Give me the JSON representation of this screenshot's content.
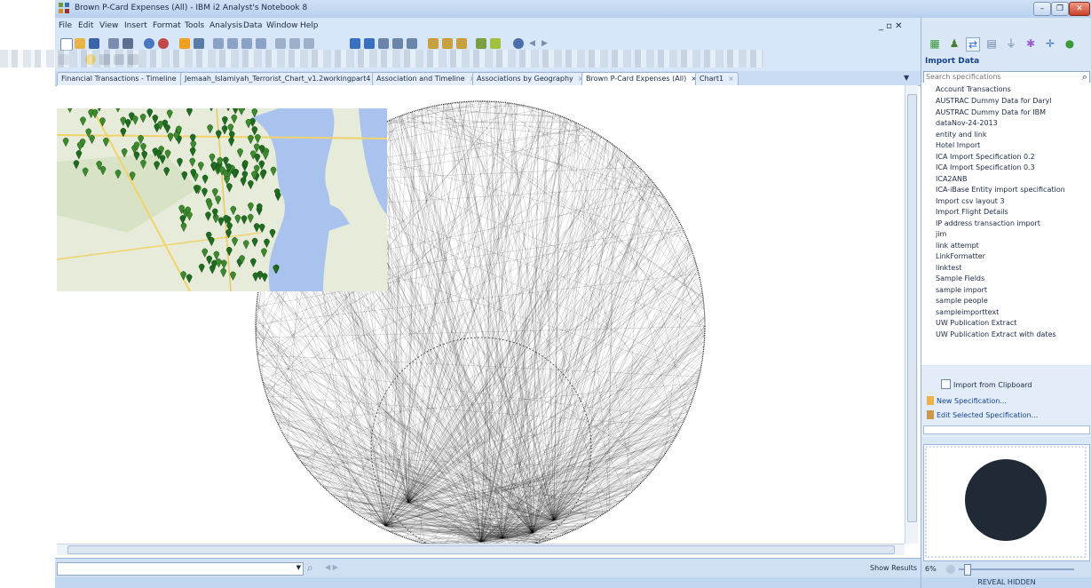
{
  "window": {
    "title": "Brown P-Card Expenses (All) - IBM i2 Analyst's Notebook 8",
    "min_label": "–",
    "restore_label": "❐",
    "close_label": "✕"
  },
  "menu": {
    "items": [
      "File",
      "Edit",
      "View",
      "Insert",
      "Format",
      "Tools",
      "Analysis",
      "Data",
      "Window",
      "Help"
    ],
    "mdi_controls": "_ ▫ ✕"
  },
  "tabs": [
    {
      "label": "Financial Transactions - Timeline",
      "close": "×"
    },
    {
      "label": "Jemaah_Islamiyah_Terrorist_Chart_v1.2workingpart4",
      "close": "×"
    },
    {
      "label": "Association and Timeline",
      "close": "×"
    },
    {
      "label": "Associations by Geography",
      "close": "×"
    },
    {
      "label": "Brown P-Card Expenses (All)",
      "close": "×",
      "active": true
    },
    {
      "label": "Chart1",
      "close": "×"
    }
  ],
  "tab_overflow": "▼",
  "status": {
    "show_results": "Show Results",
    "nav": "◀  ▶",
    "search_icon": "⌕",
    "combo_arrow": "▼"
  },
  "panel": {
    "title": "Import Data",
    "search_placeholder": "Search specifications",
    "specs": [
      "Account Transactions",
      "AUSTRAC Dummy Data for Daryl",
      "AUSTRAC Dummy Data for IBM",
      "dataNov-24-2013",
      "entity and link",
      "Hotel Import",
      "ICA Import Specification 0.2",
      "ICA Import Specification 0.3",
      "ICA2ANB",
      "ICA-iBase Entity import specification",
      "Import csv layout 3",
      "Import Flight Details",
      "IP address transaction import",
      "jim",
      "link attempt",
      "LinkFormatter",
      "linktest",
      "Sample Fields",
      "sample import",
      "sample people",
      "sampleimporttext",
      "UW Publication Extract",
      "UW Publication Extract with dates"
    ],
    "import_clipboard": "Import from Clipboard",
    "new_spec": "New Specification...",
    "edit_spec": "Edit Selected Specification...",
    "zoom": "6%",
    "reveal_hidden": "REVEAL HIDDEN"
  },
  "colors": {
    "accent": "#15428b",
    "chrome": "#d7e6f8",
    "overview_fill": "#1f2a36",
    "map_marker": "#1f6b1f"
  }
}
